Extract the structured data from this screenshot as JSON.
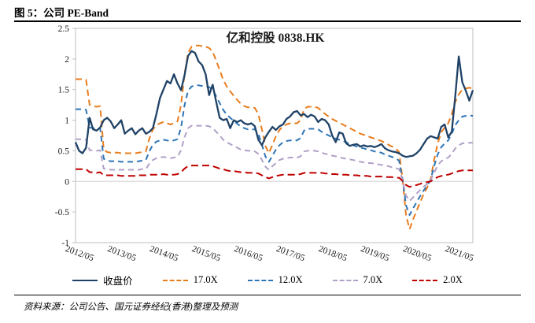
{
  "figure": {
    "heading": "图 5：公司 PE-Band",
    "source_note": "资料来源：公司公告、国元证券经纪(香港)整理及预测"
  },
  "chart_data": {
    "type": "line",
    "title": "亿和控股 0838.HK",
    "xlabel": "",
    "ylabel": "",
    "ylim": [
      -1,
      2.5
    ],
    "y_ticks": [
      2.5,
      2,
      1.5,
      1,
      0.5,
      0,
      -0.5,
      -1
    ],
    "grid": "horizontal-zero-line-only",
    "legend_position": "bottom",
    "x_start": "2012/05",
    "x_end": "2021/10",
    "x_frequency": "monthly",
    "x_tick_labels": [
      "2012/05",
      "2013/05",
      "2014/05",
      "2015/05",
      "2016/05",
      "2017/05",
      "2018/05",
      "2019/05",
      "2020/05",
      "2021/05"
    ],
    "x_tick_positions": [
      0,
      12,
      24,
      36,
      48,
      60,
      72,
      84,
      96,
      108
    ],
    "axis_color": "#bfbfbf",
    "zero_line_color": "#d9d9d9",
    "series": [
      {
        "id": "close",
        "name": "收盘价",
        "color": "#1f4266",
        "style": "solid",
        "width": 2.3,
        "dash": "",
        "values": [
          0.64,
          0.5,
          0.46,
          0.55,
          1.04,
          0.85,
          0.83,
          0.88,
          1.0,
          1.04,
          0.98,
          0.87,
          0.93,
          1.0,
          0.78,
          0.83,
          0.87,
          0.77,
          0.83,
          0.87,
          0.78,
          0.81,
          0.87,
          1.1,
          1.36,
          1.5,
          1.64,
          1.6,
          1.75,
          1.6,
          1.49,
          1.73,
          2.05,
          2.13,
          2.1,
          1.96,
          1.9,
          1.75,
          1.41,
          1.58,
          1.3,
          1.04,
          1.0,
          1.02,
          0.87,
          1.0,
          0.97,
          1.0,
          0.95,
          0.93,
          0.95,
          0.9,
          0.68,
          0.59,
          0.72,
          0.81,
          0.89,
          0.84,
          0.9,
          0.93,
          1.02,
          1.06,
          1.13,
          1.15,
          1.08,
          1.1,
          1.05,
          1.09,
          1.06,
          0.97,
          1.02,
          1.0,
          0.93,
          0.75,
          0.64,
          0.8,
          0.78,
          0.62,
          0.58,
          0.6,
          0.61,
          0.57,
          0.59,
          0.57,
          0.58,
          0.56,
          0.58,
          0.61,
          0.54,
          0.51,
          0.49,
          0.48,
          0.46,
          0.42,
          0.4,
          0.41,
          0.42,
          0.46,
          0.52,
          0.61,
          0.7,
          0.74,
          0.72,
          0.7,
          0.89,
          0.93,
          0.72,
          0.81,
          1.4,
          2.04,
          1.62,
          1.48,
          1.32,
          1.49
        ]
      },
      {
        "id": "17x",
        "name": "17.0X",
        "color": "#e87d1e",
        "style": "dashed",
        "width": 2,
        "dash": "8 5",
        "values": [
          1.67,
          1.67,
          1.67,
          1.66,
          1.25,
          1.23,
          1.22,
          1.23,
          0.52,
          0.48,
          0.47,
          0.47,
          0.47,
          0.46,
          0.46,
          0.46,
          0.46,
          0.46,
          0.47,
          0.48,
          0.49,
          0.7,
          0.85,
          0.92,
          0.95,
          0.97,
          0.95,
          0.93,
          0.95,
          0.98,
          1.25,
          1.75,
          2.1,
          2.2,
          2.22,
          2.22,
          2.21,
          2.2,
          2.18,
          2.12,
          1.97,
          1.82,
          1.66,
          1.55,
          1.47,
          1.4,
          1.33,
          1.27,
          1.23,
          1.21,
          1.21,
          1.2,
          1.1,
          0.85,
          0.58,
          0.46,
          0.6,
          0.74,
          0.84,
          0.9,
          0.93,
          0.95,
          0.95,
          0.95,
          1.0,
          1.18,
          1.22,
          1.22,
          1.22,
          1.2,
          1.15,
          1.1,
          1.06,
          1.02,
          0.99,
          0.96,
          0.93,
          0.9,
          0.87,
          0.84,
          0.81,
          0.78,
          0.76,
          0.74,
          0.72,
          0.7,
          0.68,
          0.66,
          0.63,
          0.6,
          0.57,
          0.54,
          0.48,
          0.05,
          -0.55,
          -0.78,
          -0.62,
          -0.48,
          -0.34,
          -0.21,
          -0.1,
          0.04,
          0.35,
          0.62,
          0.8,
          0.88,
          0.95,
          1.1,
          1.3,
          1.42,
          1.5,
          1.52,
          1.53,
          1.52
        ]
      },
      {
        "id": "12x",
        "name": "12.0X",
        "color": "#2e75b6",
        "style": "dashed",
        "width": 2,
        "dash": "7 5",
        "values": [
          1.18,
          1.18,
          1.18,
          1.17,
          0.88,
          0.87,
          0.86,
          0.87,
          0.37,
          0.34,
          0.33,
          0.33,
          0.33,
          0.32,
          0.32,
          0.32,
          0.32,
          0.32,
          0.33,
          0.34,
          0.35,
          0.49,
          0.6,
          0.65,
          0.67,
          0.68,
          0.67,
          0.66,
          0.67,
          0.69,
          0.88,
          1.24,
          1.48,
          1.55,
          1.57,
          1.57,
          1.56,
          1.55,
          1.54,
          1.5,
          1.39,
          1.28,
          1.17,
          1.09,
          1.04,
          0.99,
          0.94,
          0.9,
          0.87,
          0.85,
          0.85,
          0.85,
          0.78,
          0.6,
          0.41,
          0.32,
          0.42,
          0.52,
          0.59,
          0.64,
          0.66,
          0.67,
          0.67,
          0.67,
          0.71,
          0.83,
          0.86,
          0.86,
          0.86,
          0.85,
          0.81,
          0.78,
          0.75,
          0.72,
          0.7,
          0.68,
          0.66,
          0.64,
          0.61,
          0.59,
          0.57,
          0.55,
          0.54,
          0.52,
          0.51,
          0.49,
          0.48,
          0.47,
          0.44,
          0.42,
          0.4,
          0.38,
          0.34,
          0.04,
          -0.39,
          -0.55,
          -0.44,
          -0.34,
          -0.24,
          -0.15,
          -0.07,
          0.03,
          0.25,
          0.44,
          0.56,
          0.62,
          0.67,
          0.78,
          0.92,
          1.0,
          1.06,
          1.07,
          1.08,
          1.07
        ]
      },
      {
        "id": "7x",
        "name": "7.0X",
        "color": "#b1a0c7",
        "style": "dashed",
        "width": 2,
        "dash": "7 5",
        "values": [
          0.69,
          0.69,
          0.69,
          0.68,
          0.51,
          0.51,
          0.5,
          0.51,
          0.21,
          0.2,
          0.19,
          0.19,
          0.19,
          0.19,
          0.19,
          0.19,
          0.19,
          0.19,
          0.19,
          0.2,
          0.2,
          0.29,
          0.35,
          0.38,
          0.39,
          0.4,
          0.39,
          0.38,
          0.39,
          0.4,
          0.51,
          0.72,
          0.87,
          0.91,
          0.91,
          0.91,
          0.91,
          0.91,
          0.9,
          0.87,
          0.81,
          0.75,
          0.68,
          0.64,
          0.61,
          0.58,
          0.55,
          0.52,
          0.51,
          0.5,
          0.5,
          0.49,
          0.45,
          0.35,
          0.24,
          0.19,
          0.25,
          0.3,
          0.35,
          0.37,
          0.38,
          0.39,
          0.39,
          0.39,
          0.41,
          0.49,
          0.5,
          0.5,
          0.5,
          0.49,
          0.47,
          0.45,
          0.44,
          0.42,
          0.41,
          0.4,
          0.38,
          0.37,
          0.36,
          0.35,
          0.33,
          0.32,
          0.31,
          0.3,
          0.3,
          0.29,
          0.28,
          0.27,
          0.26,
          0.25,
          0.23,
          0.22,
          0.2,
          0.02,
          -0.23,
          -0.32,
          -0.26,
          -0.2,
          -0.14,
          -0.09,
          -0.04,
          0.02,
          0.14,
          0.26,
          0.33,
          0.36,
          0.39,
          0.45,
          0.54,
          0.59,
          0.62,
          0.63,
          0.63,
          0.63
        ]
      },
      {
        "id": "2x",
        "name": "2.0X",
        "color": "#c00000",
        "style": "dashed",
        "width": 2,
        "dash": "9 5",
        "values": [
          0.2,
          0.2,
          0.2,
          0.2,
          0.15,
          0.15,
          0.14,
          0.15,
          0.1,
          0.1,
          0.1,
          0.1,
          0.1,
          0.09,
          0.09,
          0.09,
          0.09,
          0.09,
          0.1,
          0.1,
          0.1,
          0.11,
          0.11,
          0.11,
          0.11,
          0.12,
          0.11,
          0.11,
          0.11,
          0.12,
          0.15,
          0.21,
          0.25,
          0.26,
          0.26,
          0.26,
          0.26,
          0.26,
          0.26,
          0.25,
          0.23,
          0.21,
          0.2,
          0.18,
          0.17,
          0.17,
          0.16,
          0.15,
          0.15,
          0.14,
          0.14,
          0.14,
          0.13,
          0.1,
          0.07,
          0.05,
          0.07,
          0.09,
          0.1,
          0.11,
          0.11,
          0.11,
          0.11,
          0.11,
          0.12,
          0.14,
          0.14,
          0.14,
          0.14,
          0.14,
          0.14,
          0.13,
          0.13,
          0.12,
          0.12,
          0.11,
          0.11,
          0.11,
          0.1,
          0.1,
          0.1,
          0.09,
          0.09,
          0.09,
          0.08,
          0.08,
          0.08,
          0.08,
          0.07,
          0.07,
          0.07,
          0.06,
          0.06,
          0.01,
          -0.06,
          -0.09,
          -0.07,
          -0.06,
          -0.04,
          -0.02,
          -0.01,
          0.0,
          0.04,
          0.07,
          0.09,
          0.1,
          0.11,
          0.13,
          0.15,
          0.17,
          0.18,
          0.18,
          0.18,
          0.18
        ]
      }
    ]
  }
}
